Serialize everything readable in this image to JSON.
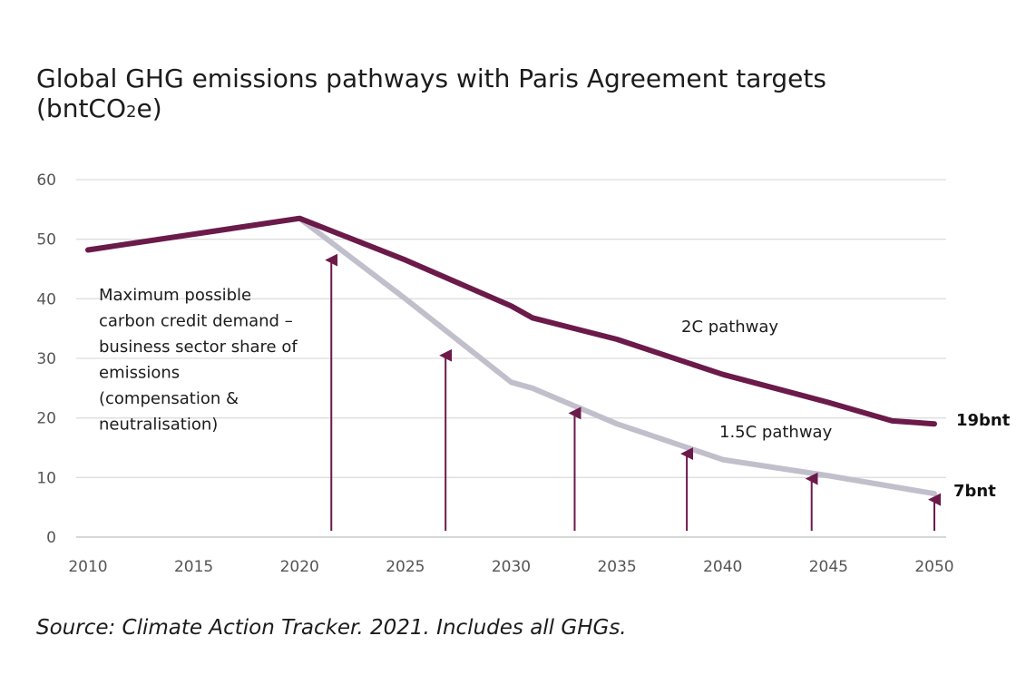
{
  "title": {
    "line1": "Global GHG emissions pathways with Paris Agreement targets",
    "line2_pre": "(bntCO",
    "line2_sub": "2",
    "line2_post": "e)"
  },
  "source": "Source: Climate Action Tracker. 2021. Includes all GHGs.",
  "chart_data": {
    "type": "line",
    "title": "Global GHG emissions pathways with Paris Agreement targets (bntCO2e)",
    "xlabel": "",
    "ylabel": "",
    "xlim": [
      2010,
      2050
    ],
    "ylim": [
      0,
      60
    ],
    "grid": true,
    "x_ticks": [
      2010,
      2015,
      2020,
      2025,
      2030,
      2035,
      2040,
      2045,
      2050
    ],
    "y_ticks": [
      0,
      10,
      20,
      30,
      40,
      50,
      60
    ],
    "series": [
      {
        "name": "2C pathway",
        "color": "#6b1a4a",
        "points": [
          [
            2010,
            48.2
          ],
          [
            2020,
            53.5
          ],
          [
            2025,
            46.5
          ],
          [
            2030,
            38.8
          ],
          [
            2031,
            36.8
          ],
          [
            2035,
            33.2
          ],
          [
            2040,
            27.3
          ],
          [
            2045,
            22.6
          ],
          [
            2048,
            19.5
          ],
          [
            2050,
            19.0
          ]
        ]
      },
      {
        "name": "1.5C pathway",
        "color": "#c2bfcc",
        "points": [
          [
            2010,
            48.2
          ],
          [
            2020,
            53.5
          ],
          [
            2025,
            40.0
          ],
          [
            2030,
            26.0
          ],
          [
            2031,
            25.0
          ],
          [
            2035,
            19.0
          ],
          [
            2040,
            13.0
          ],
          [
            2045,
            10.3
          ],
          [
            2050,
            7.3
          ]
        ]
      }
    ],
    "arrows": {
      "color": "#6b1a4a",
      "items": [
        {
          "x": 2021.5,
          "top": 46.5
        },
        {
          "x": 2026.9,
          "top": 30.5
        },
        {
          "x": 2033.0,
          "top": 20.8
        },
        {
          "x": 2038.3,
          "top": 14.0
        },
        {
          "x": 2044.2,
          "top": 9.8
        },
        {
          "x": 2050.0,
          "top": 6.3
        }
      ]
    },
    "annotations": [
      {
        "lines": [
          "Maximum possible",
          "carbon credit demand –",
          "business sector share of",
          "emissions",
          "(compensation &",
          "neutralisation)"
        ]
      },
      {
        "text": "2C pathway"
      },
      {
        "text": "1.5C pathway"
      }
    ],
    "end_labels": [
      {
        "text": "19bnt",
        "value": 19
      },
      {
        "text": "7bnt",
        "value": 7
      }
    ]
  }
}
